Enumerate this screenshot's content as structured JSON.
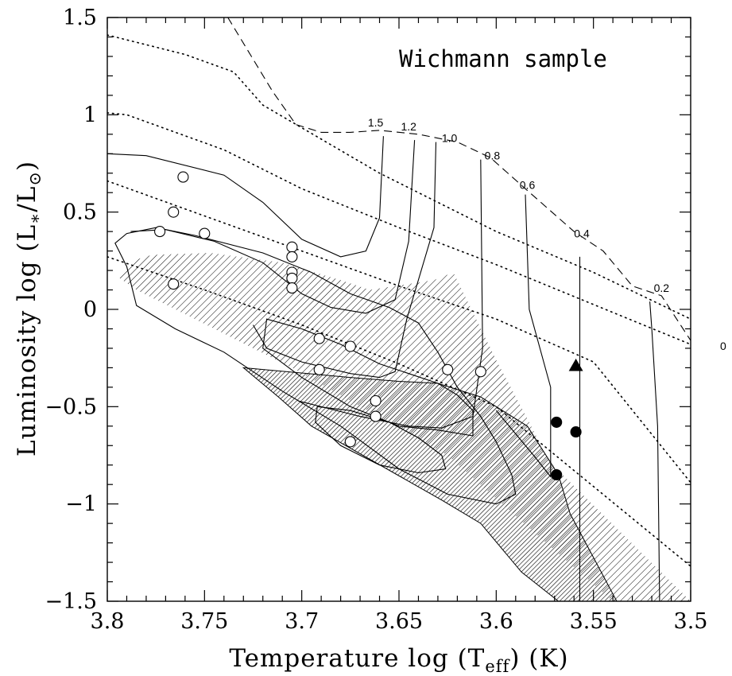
{
  "chart_data": {
    "type": "scatter",
    "title": "Wichmann sample",
    "xlabel": "Temperature log (T_eff) (K)",
    "ylabel": "Luminosity log (L*/L⊙)",
    "xlim": [
      3.8,
      3.5
    ],
    "ylim": [
      -1.5,
      1.5
    ],
    "x_reversed": true,
    "x_ticks": [
      3.8,
      3.75,
      3.7,
      3.65,
      3.6,
      3.55,
      3.5
    ],
    "x_tick_labels": [
      "3.8",
      "3.75",
      "3.7",
      "3.65",
      "3.6",
      "3.55",
      "3.5"
    ],
    "y_ticks": [
      -1.5,
      -1,
      -0.5,
      0,
      0.5,
      1,
      1.5
    ],
    "y_tick_labels": [
      "−1.5",
      "−1",
      "−0.5",
      "0",
      "0.5",
      "1",
      "1.5"
    ],
    "xlabel_parts": {
      "pre": "Temperature log (T",
      "sub": "eff",
      "post": ") (K)"
    },
    "ylabel_parts": {
      "pre": "Luminosity log (L",
      "sub1": "∗",
      "mid": "/L",
      "sub2": "⊙",
      "post": ")"
    },
    "grid": false,
    "mass_labels": [
      {
        "text": "1.5",
        "x": 3.662,
        "y": 0.94
      },
      {
        "text": "1.2",
        "x": 3.645,
        "y": 0.92
      },
      {
        "text": "1.0",
        "x": 3.624,
        "y": 0.86
      },
      {
        "text": "0.8",
        "x": 3.602,
        "y": 0.77
      },
      {
        "text": "0.6",
        "x": 3.584,
        "y": 0.62
      },
      {
        "text": "0.4",
        "x": 3.556,
        "y": 0.37
      },
      {
        "text": "0.2",
        "x": 3.515,
        "y": 0.09
      }
    ],
    "clipped_label": "0",
    "birthline": [
      [
        3.738,
        1.5
      ],
      [
        3.715,
        1.12
      ],
      [
        3.703,
        0.95
      ],
      [
        3.69,
        0.91
      ],
      [
        3.675,
        0.91
      ],
      [
        3.66,
        0.92
      ],
      [
        3.64,
        0.9
      ],
      [
        3.62,
        0.86
      ],
      [
        3.603,
        0.78
      ],
      [
        3.585,
        0.62
      ],
      [
        3.56,
        0.4
      ],
      [
        3.545,
        0.3
      ],
      [
        3.53,
        0.12
      ],
      [
        3.515,
        0.07
      ],
      [
        3.5,
        -0.16
      ]
    ],
    "tracks": [
      {
        "mass": "1.5",
        "points": [
          [
            3.8,
            0.8
          ],
          [
            3.78,
            0.79
          ],
          [
            3.74,
            0.69
          ],
          [
            3.72,
            0.55
          ],
          [
            3.7,
            0.36
          ],
          [
            3.68,
            0.27
          ],
          [
            3.667,
            0.3
          ],
          [
            3.66,
            0.47
          ],
          [
            3.658,
            0.89
          ]
        ]
      },
      {
        "mass": "1.2",
        "points": [
          [
            3.788,
            0.4
          ],
          [
            3.77,
            0.41
          ],
          [
            3.745,
            0.35
          ],
          [
            3.72,
            0.24
          ],
          [
            3.7,
            0.08
          ],
          [
            3.685,
            0.01
          ],
          [
            3.667,
            -0.02
          ],
          [
            3.652,
            0.05
          ],
          [
            3.645,
            0.35
          ],
          [
            3.642,
            0.87
          ]
        ]
      },
      {
        "mass": "1.0",
        "points": [
          [
            3.725,
            -0.08
          ],
          [
            3.718,
            -0.2
          ],
          [
            3.7,
            -0.27
          ],
          [
            3.675,
            -0.33
          ],
          [
            3.66,
            -0.35
          ],
          [
            3.652,
            -0.32
          ],
          [
            3.646,
            -0.05
          ],
          [
            3.632,
            0.42
          ],
          [
            3.631,
            0.86
          ]
        ]
      },
      {
        "mass": "0.8",
        "points": [
          [
            3.702,
            -0.47
          ],
          [
            3.67,
            -0.55
          ],
          [
            3.645,
            -0.6
          ],
          [
            3.628,
            -0.61
          ],
          [
            3.612,
            -0.55
          ],
          [
            3.607,
            -0.2
          ],
          [
            3.608,
            0.77
          ]
        ]
      },
      {
        "mass": "0.6",
        "points": [
          [
            3.6,
            -0.52
          ],
          [
            3.58,
            -0.76
          ],
          [
            3.572,
            -0.86
          ],
          [
            3.572,
            -0.4
          ],
          [
            3.583,
            0.0
          ],
          [
            3.585,
            0.59
          ]
        ]
      },
      {
        "mass": "0.4",
        "points": [
          [
            3.557,
            -1.5
          ],
          [
            3.557,
            0.2
          ],
          [
            3.557,
            0.27
          ]
        ]
      },
      {
        "mass": "0.2",
        "points": [
          [
            3.516,
            -1.5
          ],
          [
            3.517,
            -0.6
          ],
          [
            3.52,
            -0.1
          ],
          [
            3.521,
            0.04
          ]
        ]
      }
    ],
    "isochrones": [
      [
        [
          3.8,
          1.41
        ],
        [
          3.76,
          1.31
        ],
        [
          3.735,
          1.22
        ],
        [
          3.72,
          1.05
        ],
        [
          3.66,
          0.7
        ],
        [
          3.62,
          0.5
        ],
        [
          3.6,
          0.4
        ],
        [
          3.55,
          0.19
        ],
        [
          3.5,
          -0.05
        ]
      ],
      [
        [
          3.8,
          1.01
        ],
        [
          3.79,
          1.0
        ],
        [
          3.74,
          0.82
        ],
        [
          3.7,
          0.62
        ],
        [
          3.65,
          0.42
        ],
        [
          3.6,
          0.23
        ],
        [
          3.5,
          -0.18
        ]
      ],
      [
        [
          3.8,
          0.66
        ],
        [
          3.7,
          0.3
        ],
        [
          3.65,
          0.12
        ],
        [
          3.6,
          -0.05
        ],
        [
          3.55,
          -0.27
        ],
        [
          3.5,
          -0.89
        ]
      ],
      [
        [
          3.8,
          0.27
        ],
        [
          3.75,
          0.1
        ],
        [
          3.7,
          -0.08
        ],
        [
          3.65,
          -0.28
        ],
        [
          3.6,
          -0.5
        ],
        [
          3.5,
          -1.32
        ]
      ]
    ],
    "light_region": [
      [
        3.787,
        0.25
      ],
      [
        3.777,
        0.28
      ],
      [
        3.747,
        0.29
      ],
      [
        3.71,
        0.24
      ],
      [
        3.68,
        0.15
      ],
      [
        3.665,
        0.1
      ],
      [
        3.632,
        0.15
      ],
      [
        3.622,
        0.19
      ],
      [
        3.6,
        -0.26
      ],
      [
        3.583,
        -0.58
      ],
      [
        3.573,
        -0.78
      ],
      [
        3.5,
        -1.5
      ],
      [
        3.54,
        -1.5
      ],
      [
        3.58,
        -1.15
      ],
      [
        3.625,
        -0.75
      ],
      [
        3.705,
        -0.3
      ],
      [
        3.785,
        0.1
      ],
      [
        3.795,
        0.17
      ]
    ],
    "dark_region": [
      [
        3.73,
        -0.3
      ],
      [
        3.675,
        -0.35
      ],
      [
        3.65,
        -0.37
      ],
      [
        3.63,
        -0.38
      ],
      [
        3.608,
        -0.45
      ],
      [
        3.584,
        -0.6
      ],
      [
        3.568,
        -0.85
      ],
      [
        3.562,
        -1.05
      ],
      [
        3.538,
        -1.5
      ],
      [
        3.568,
        -1.5
      ],
      [
        3.587,
        -1.35
      ],
      [
        3.608,
        -1.1
      ],
      [
        3.628,
        -0.98
      ],
      [
        3.695,
        -0.6
      ],
      [
        3.712,
        -0.45
      ]
    ],
    "contour_outer": [
      [
        3.796,
        0.34
      ],
      [
        3.79,
        0.39
      ],
      [
        3.775,
        0.42
      ],
      [
        3.755,
        0.38
      ],
      [
        3.72,
        0.29
      ],
      [
        3.695,
        0.19
      ],
      [
        3.675,
        0.08
      ],
      [
        3.655,
        0.01
      ],
      [
        3.64,
        -0.07
      ],
      [
        3.63,
        -0.22
      ],
      [
        3.62,
        -0.4
      ],
      [
        3.608,
        -0.55
      ],
      [
        3.6,
        -0.68
      ],
      [
        3.592,
        -0.85
      ],
      [
        3.59,
        -0.95
      ],
      [
        3.6,
        -1.0
      ],
      [
        3.625,
        -0.95
      ],
      [
        3.65,
        -0.82
      ],
      [
        3.68,
        -0.6
      ],
      [
        3.71,
        -0.42
      ],
      [
        3.74,
        -0.22
      ],
      [
        3.765,
        -0.1
      ],
      [
        3.785,
        0.02
      ],
      [
        3.79,
        0.22
      ]
    ],
    "contour_inner": [
      [
        3.718,
        -0.05
      ],
      [
        3.7,
        -0.1
      ],
      [
        3.68,
        -0.18
      ],
      [
        3.66,
        -0.28
      ],
      [
        3.645,
        -0.33
      ],
      [
        3.63,
        -0.38
      ],
      [
        3.62,
        -0.44
      ],
      [
        3.612,
        -0.52
      ],
      [
        3.612,
        -0.65
      ],
      [
        3.63,
        -0.62
      ],
      [
        3.65,
        -0.6
      ],
      [
        3.675,
        -0.5
      ],
      [
        3.7,
        -0.35
      ],
      [
        3.72,
        -0.2
      ]
    ],
    "contour_small": [
      [
        3.692,
        -0.5
      ],
      [
        3.675,
        -0.52
      ],
      [
        3.655,
        -0.58
      ],
      [
        3.64,
        -0.66
      ],
      [
        3.628,
        -0.75
      ],
      [
        3.626,
        -0.82
      ],
      [
        3.64,
        -0.84
      ],
      [
        3.66,
        -0.8
      ],
      [
        3.68,
        -0.7
      ],
      [
        3.693,
        -0.58
      ]
    ],
    "series": [
      {
        "name": "",
        "marker": "open-circle",
        "points": [
          [
            3.761,
            0.68
          ],
          [
            3.766,
            0.5
          ],
          [
            3.75,
            0.39
          ],
          [
            3.773,
            0.4
          ],
          [
            3.766,
            0.13
          ],
          [
            3.705,
            0.32
          ],
          [
            3.705,
            0.27
          ],
          [
            3.705,
            0.19
          ],
          [
            3.705,
            0.16
          ],
          [
            3.705,
            0.11
          ],
          [
            3.691,
            -0.15
          ],
          [
            3.675,
            -0.19
          ],
          [
            3.691,
            -0.31
          ],
          [
            3.625,
            -0.31
          ],
          [
            3.608,
            -0.32
          ],
          [
            3.662,
            -0.47
          ],
          [
            3.662,
            -0.55
          ],
          [
            3.675,
            -0.68
          ]
        ]
      },
      {
        "name": "",
        "marker": "filled-circle",
        "points": [
          [
            3.569,
            -0.58
          ],
          [
            3.559,
            -0.63
          ],
          [
            3.569,
            -0.85
          ]
        ]
      },
      {
        "name": "",
        "marker": "filled-triangle",
        "points": [
          [
            3.559,
            -0.29
          ]
        ]
      }
    ]
  }
}
